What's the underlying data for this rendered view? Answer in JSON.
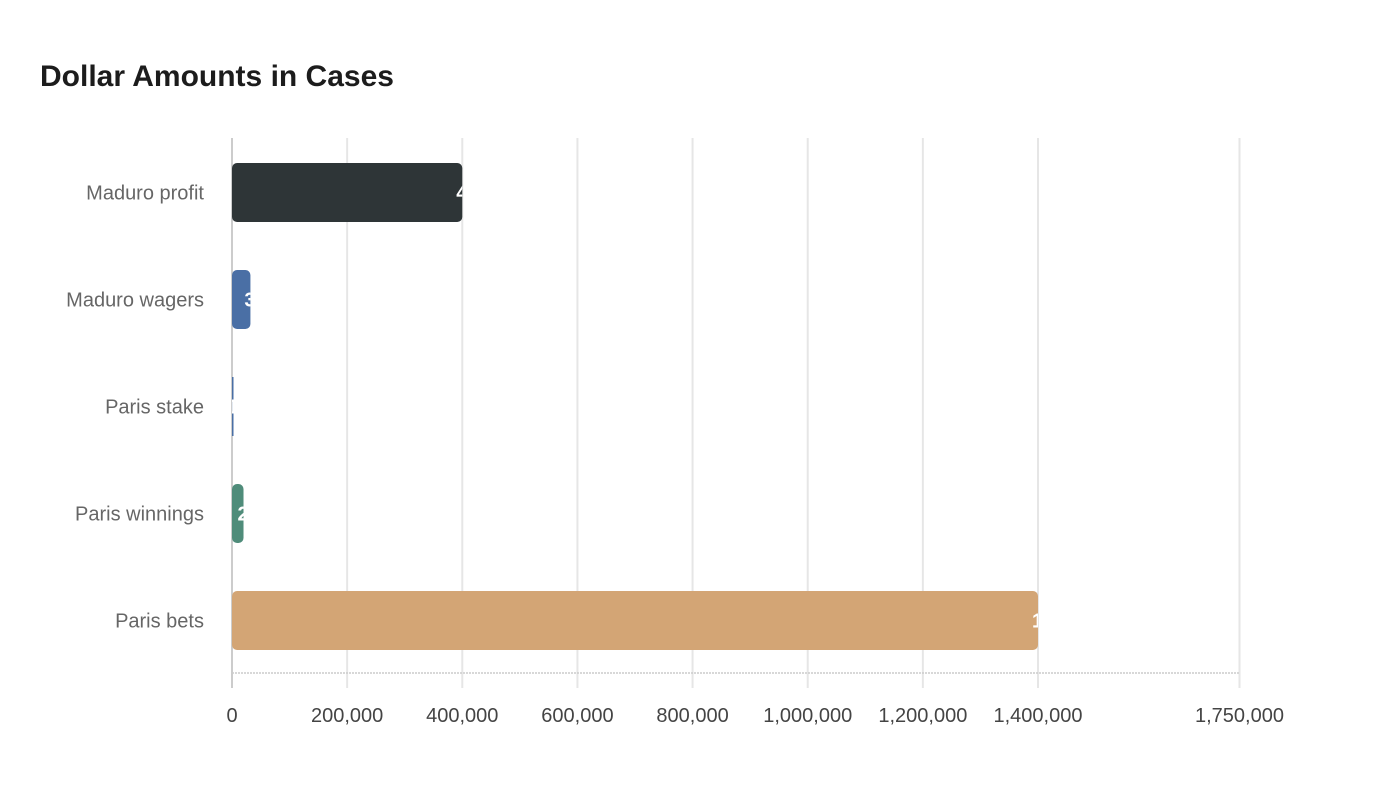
{
  "chart_data": {
    "type": "bar",
    "orientation": "horizontal",
    "title": "Dollar Amounts in Cases",
    "xlabel": "",
    "ylabel": "",
    "categories": [
      "Maduro profit",
      "Maduro wagers",
      "Paris stake",
      "Paris winnings",
      "Paris bets"
    ],
    "values": [
      400000,
      32000,
      1000,
      20000,
      1400000
    ],
    "colors": [
      "#2e3537",
      "#4a6fa5",
      "#4a6fa5",
      "#4f8c7a",
      "#d3a575"
    ],
    "xlim": [
      0,
      1750000
    ],
    "xticks": [
      0,
      200000,
      400000,
      600000,
      800000,
      1000000,
      1200000,
      1400000,
      1750000
    ],
    "xtick_labels": [
      "0",
      "200,000",
      "400,000",
      "600,000",
      "800,000",
      "1,000,000",
      "1,200,000",
      "1,400,000",
      "1,750,000"
    ],
    "grid": true,
    "legend": "none"
  }
}
